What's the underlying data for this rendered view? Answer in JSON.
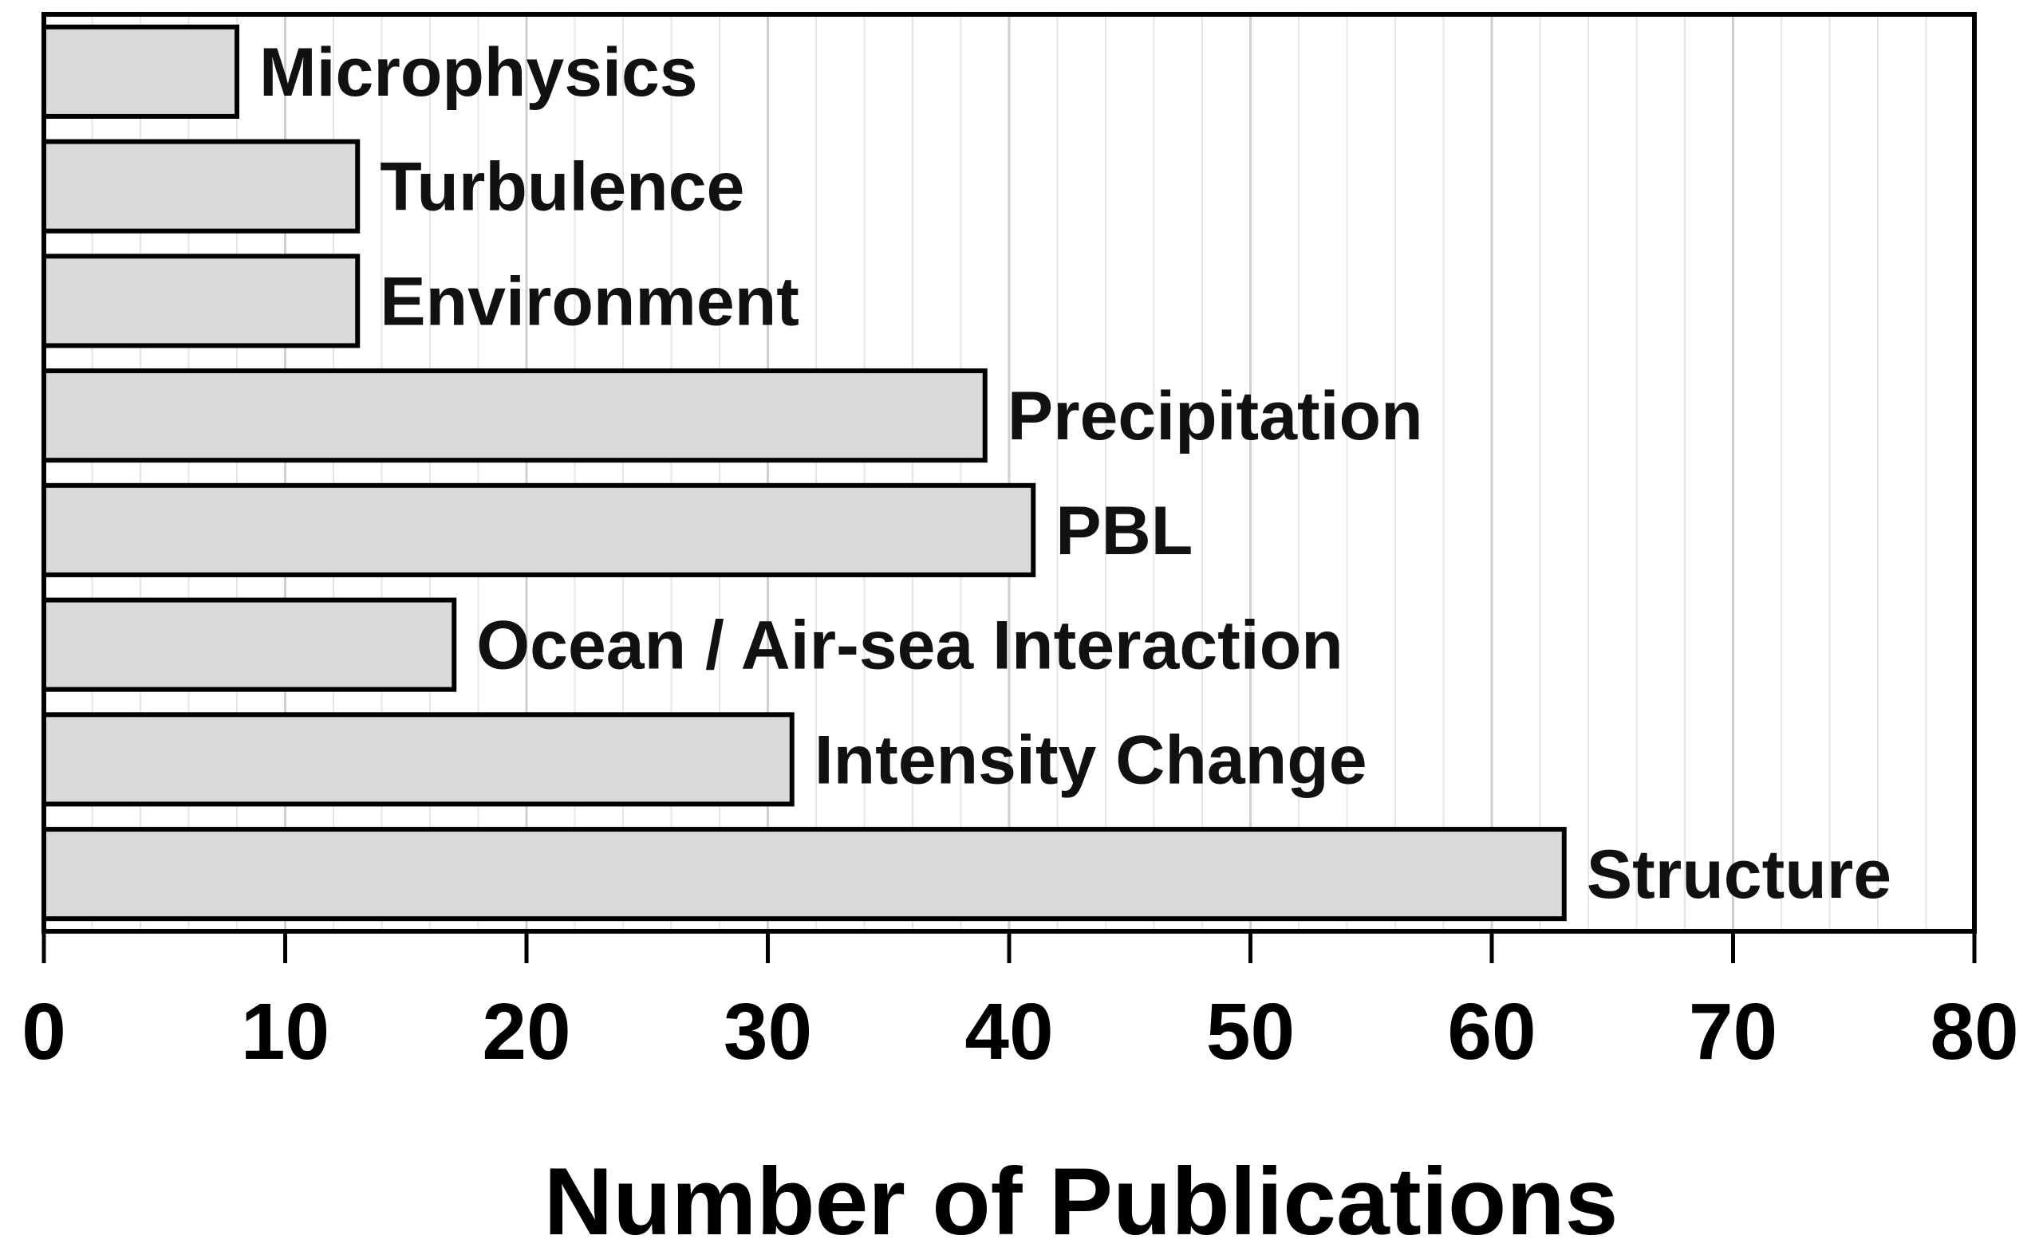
{
  "chart_data": {
    "type": "bar",
    "orientation": "horizontal",
    "categories": [
      "Microphysics",
      "Turbulence",
      "Environment",
      "Precipitation",
      "PBL",
      "Ocean / Air-sea Interaction",
      "Intensity Change",
      "Structure"
    ],
    "values": [
      8,
      13,
      13,
      39,
      41,
      17,
      31,
      63
    ],
    "xlabel": "Number of Publications",
    "ylabel": "",
    "xlim": [
      0,
      80
    ],
    "x_ticks": [
      "0",
      "10",
      "20",
      "30",
      "40",
      "50",
      "60",
      "70",
      "80"
    ],
    "grid": "vertical",
    "bar_color": "#d9d9d9"
  }
}
